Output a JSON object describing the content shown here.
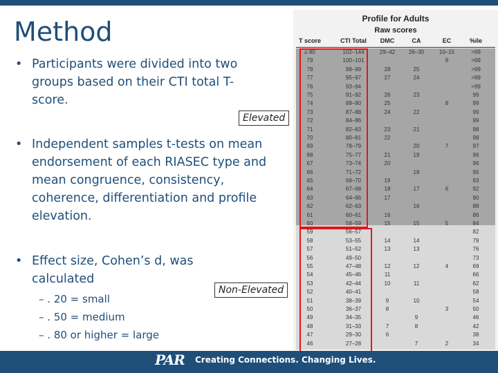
{
  "slide": {
    "title": "Method",
    "bullets": [
      {
        "text": "Participants were divided into two groups based on their CTI total T-score."
      },
      {
        "text": "Independent samples t-tests on mean endorsement of each RIASEC type and mean congruence, consistency, coherence, differentiation and profile elevation."
      },
      {
        "text": "Effect size, Cohen’s d, was calculated"
      }
    ],
    "effect_sizes": [
      ". 20 = small",
      ". 50 = medium",
      ". 80 or higher = large"
    ],
    "tags": {
      "elevated": "Elevated",
      "non_elevated": "Non-Elevated"
    }
  },
  "profile": {
    "title": "Profile for Adults",
    "subtitle": "Raw scores",
    "columns": [
      "T score",
      "CTI Total",
      "DMC",
      "CA",
      "EC",
      "%ile"
    ],
    "rows": [
      [
        "≥ 80",
        "102–144",
        "29–42",
        "26–30",
        "10–15",
        ">99"
      ],
      [
        "79",
        "100–101",
        "",
        "",
        "9",
        ">99"
      ],
      [
        "78",
        "98–99",
        "28",
        "25",
        "",
        ">99"
      ],
      [
        "77",
        "95–97",
        "27",
        "24",
        "",
        ">99"
      ],
      [
        "76",
        "93–94",
        "",
        "",
        "",
        ">99"
      ],
      [
        "75",
        "91–92",
        "26",
        "23",
        "",
        "99"
      ],
      [
        "74",
        "89–90",
        "25",
        "",
        "8",
        "99"
      ],
      [
        "73",
        "87–88",
        "24",
        "22",
        "",
        "99"
      ],
      [
        "72",
        "84–86",
        "",
        "",
        "",
        "99"
      ],
      [
        "71",
        "82–83",
        "23",
        "21",
        "",
        "98"
      ],
      [
        "70",
        "80–81",
        "22",
        "",
        "",
        "98"
      ],
      [
        "69",
        "78–79",
        "",
        "20",
        "7",
        "97"
      ],
      [
        "68",
        "75–77",
        "21",
        "19",
        "",
        "96"
      ],
      [
        "67",
        "73–74",
        "20",
        "",
        "",
        "96"
      ],
      [
        "66",
        "71–72",
        "",
        "18",
        "",
        "95"
      ],
      [
        "65",
        "69–70",
        "19",
        "",
        "",
        "93"
      ],
      [
        "64",
        "67–68",
        "18",
        "17",
        "6",
        "92"
      ],
      [
        "63",
        "64–66",
        "17",
        "",
        "",
        "90"
      ],
      [
        "62",
        "62–63",
        "",
        "16",
        "",
        "88"
      ],
      [
        "61",
        "60–61",
        "16",
        "",
        "",
        "86"
      ],
      [
        "60",
        "58–59",
        "15",
        "15",
        "5",
        "84"
      ],
      [
        "59",
        "56–57",
        "",
        "",
        "",
        "82"
      ],
      [
        "58",
        "53–55",
        "14",
        "14",
        "",
        "79"
      ],
      [
        "57",
        "51–52",
        "13",
        "13",
        "",
        "76"
      ],
      [
        "56",
        "49–50",
        "",
        "",
        "",
        "73"
      ],
      [
        "55",
        "47–48",
        "12",
        "12",
        "4",
        "69"
      ],
      [
        "54",
        "45–46",
        "11",
        "",
        "",
        "66"
      ],
      [
        "53",
        "42–44",
        "10",
        "11",
        "",
        "62"
      ],
      [
        "52",
        "40–41",
        "",
        "",
        "",
        "58"
      ],
      [
        "51",
        "38–39",
        "9",
        "10",
        "",
        "54"
      ],
      [
        "50",
        "36–37",
        "8",
        "",
        "3",
        "50"
      ],
      [
        "49",
        "34–35",
        "",
        "9",
        "",
        "46"
      ],
      [
        "48",
        "31–33",
        "7",
        "8",
        "",
        "42"
      ],
      [
        "47",
        "29–30",
        "6",
        "",
        "",
        "38"
      ],
      [
        "46",
        "27–28",
        "",
        "7",
        "2",
        "34"
      ]
    ]
  },
  "footer": {
    "logo": "PAR",
    "tagline": "Creating Connections. Changing Lives."
  },
  "colors": {
    "primary": "#1f4e79",
    "red_outline": "#e0161a",
    "elevated_band": "#a6a6a6",
    "non_elevated_band": "#d9d9d9"
  }
}
